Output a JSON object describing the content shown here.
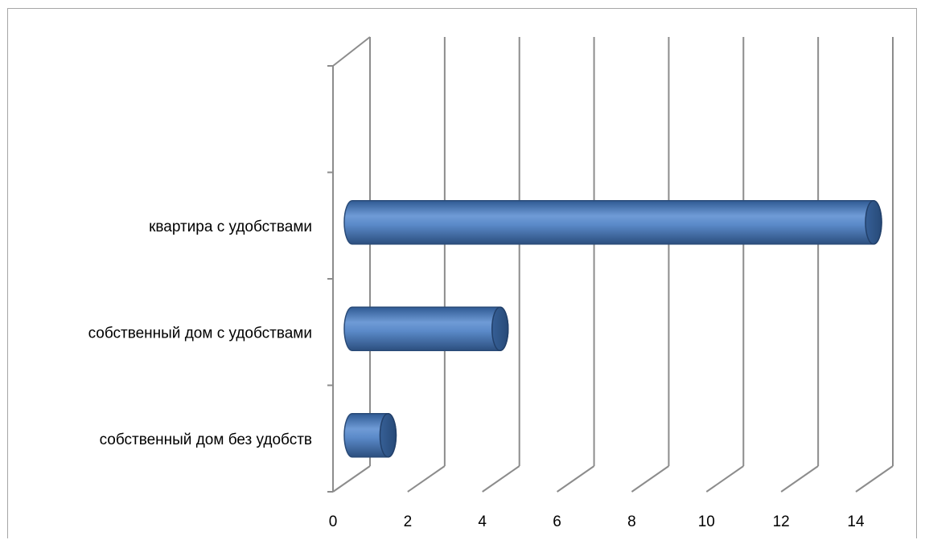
{
  "chart_data": {
    "type": "bar",
    "orientation": "horizontal",
    "style": "3d-cylinder",
    "categories": [
      "собственный дом без удобств",
      "собственный дом с удобствами",
      "квартира с удобствами",
      ""
    ],
    "values": [
      1,
      4,
      14,
      0
    ],
    "xlim": [
      0,
      14
    ],
    "xticks": [
      "0",
      "2",
      "4",
      "6",
      "8",
      "10",
      "12",
      "14"
    ],
    "grid": true,
    "legend": "none",
    "title": "",
    "xlabel": "",
    "ylabel": "",
    "colors": {
      "bar": "#4f81bd",
      "bar_dark": "#2c4f7f",
      "bar_light": "#7fa6dc",
      "grid": "#8c8c8c",
      "frame": "#a6a6a6"
    }
  }
}
